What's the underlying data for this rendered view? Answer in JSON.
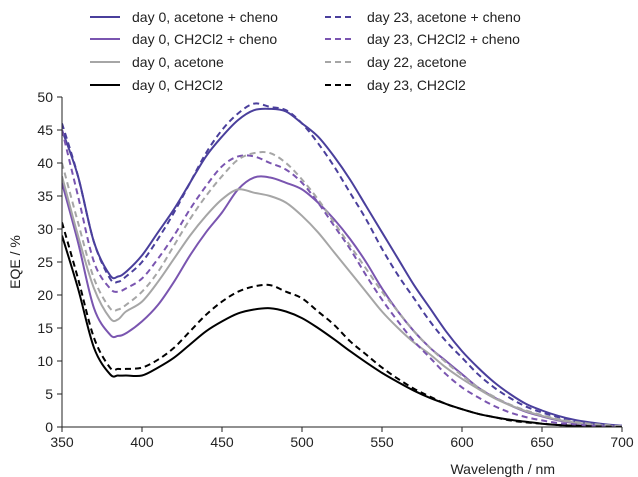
{
  "chart_data": {
    "type": "line",
    "title": "",
    "xlabel": "Wavelength / nm",
    "ylabel": "EQE / %",
    "xlim": [
      350,
      700
    ],
    "ylim": [
      0,
      50
    ],
    "xticks": [
      "350",
      "400",
      "450",
      "500",
      "550",
      "600",
      "650",
      "700"
    ],
    "yticks": [
      "0",
      "5",
      "10",
      "15",
      "20",
      "25",
      "30",
      "35",
      "40",
      "45",
      "50"
    ],
    "grid": false,
    "legend_position": "top",
    "colors": {
      "dark_purple": "#4a3f9c",
      "mid_purple": "#7a55b0",
      "gray": "#a6a6a6",
      "black": "#000000"
    },
    "series": [
      {
        "name": "day 0, acetone + cheno",
        "color": "#4a3f9c",
        "dash": "solid",
        "x": [
          350,
          360,
          370,
          380,
          385,
          390,
          400,
          410,
          420,
          430,
          440,
          450,
          460,
          470,
          480,
          490,
          500,
          510,
          520,
          530,
          540,
          550,
          560,
          570,
          580,
          590,
          600,
          610,
          620,
          630,
          640,
          650,
          660,
          670,
          680,
          690,
          700
        ],
        "y": [
          45,
          38,
          28,
          23,
          22.8,
          23.5,
          26,
          29.5,
          33,
          37,
          41,
          44,
          46.5,
          48,
          48.2,
          47.8,
          46,
          44,
          41,
          37.5,
          33.5,
          29.5,
          25.5,
          21.5,
          18,
          14.5,
          11.5,
          9,
          6.8,
          5,
          3.5,
          2.5,
          1.7,
          1.1,
          0.7,
          0.4,
          0.2
        ]
      },
      {
        "name": "day 0, CH2Cl2 + cheno",
        "color": "#7a55b0",
        "dash": "solid",
        "x": [
          350,
          360,
          370,
          380,
          385,
          390,
          400,
          410,
          420,
          430,
          440,
          450,
          460,
          470,
          480,
          490,
          500,
          510,
          520,
          530,
          540,
          550,
          560,
          570,
          580,
          590,
          600,
          610,
          620,
          630,
          640,
          650,
          660,
          670,
          680,
          690,
          700
        ],
        "y": [
          37,
          28,
          18,
          14,
          13.8,
          14.2,
          16,
          18.5,
          22,
          26,
          29.5,
          32.5,
          36,
          37.8,
          37.8,
          37,
          36,
          34,
          31.5,
          28.5,
          25,
          21,
          17.5,
          14.5,
          12,
          10,
          8,
          6,
          4.5,
          3.3,
          2.3,
          1.6,
          1,
          0.6,
          0.4,
          0.2,
          0.1
        ]
      },
      {
        "name": "day 0, acetone",
        "color": "#a6a6a6",
        "dash": "solid",
        "x": [
          350,
          360,
          370,
          380,
          385,
          390,
          400,
          410,
          420,
          430,
          440,
          450,
          460,
          470,
          480,
          490,
          500,
          510,
          520,
          530,
          540,
          550,
          560,
          570,
          580,
          590,
          600,
          610,
          620,
          630,
          640,
          650,
          660,
          670,
          680,
          690,
          700
        ],
        "y": [
          38,
          29,
          21,
          16.5,
          16.3,
          17.5,
          19,
          22,
          25.5,
          29,
          32,
          34.5,
          36,
          35.5,
          35,
          34,
          32,
          29.5,
          26.5,
          23.5,
          20.5,
          17.5,
          15,
          12.8,
          11,
          9,
          7.3,
          5.8,
          4.4,
          3.3,
          2.4,
          1.7,
          1.1,
          0.7,
          0.4,
          0.2,
          0.1
        ]
      },
      {
        "name": "day 0, CH2Cl2",
        "color": "#000000",
        "dash": "solid",
        "x": [
          350,
          360,
          370,
          380,
          385,
          390,
          400,
          410,
          420,
          430,
          440,
          450,
          460,
          470,
          480,
          490,
          500,
          510,
          520,
          530,
          540,
          550,
          560,
          570,
          580,
          590,
          600,
          610,
          620,
          630,
          640,
          650,
          660,
          670,
          680,
          690,
          700
        ],
        "y": [
          29,
          21,
          12,
          8,
          7.8,
          7.8,
          7.8,
          9,
          10.5,
          12.5,
          14.5,
          16,
          17.2,
          17.8,
          18,
          17.5,
          16.5,
          15,
          13.3,
          11.5,
          9.8,
          8.2,
          6.8,
          5.5,
          4.4,
          3.5,
          2.7,
          2,
          1.5,
          1.1,
          0.8,
          0.5,
          0.3,
          0.2,
          0.1,
          0.05,
          0
        ]
      },
      {
        "name": "day 23, acetone + cheno",
        "color": "#4a3f9c",
        "dash": "dashed",
        "x": [
          350,
          360,
          370,
          380,
          385,
          390,
          400,
          410,
          420,
          430,
          440,
          450,
          460,
          470,
          480,
          490,
          500,
          510,
          520,
          530,
          540,
          550,
          560,
          570,
          580,
          590,
          600,
          610,
          620,
          630,
          640,
          650,
          660,
          670,
          680,
          690,
          700
        ],
        "y": [
          46,
          38,
          28,
          22.5,
          22,
          22.8,
          25,
          28.5,
          32.5,
          37,
          41.5,
          45,
          47.5,
          49,
          48.5,
          48,
          46,
          43,
          39.5,
          35.5,
          31.5,
          27,
          23,
          19.5,
          16,
          13,
          10.5,
          8,
          6,
          4.4,
          3.1,
          2.2,
          1.5,
          0.9,
          0.5,
          0.3,
          0.1
        ]
      },
      {
        "name": "day 23, CH2Cl2 + cheno",
        "color": "#7a55b0",
        "dash": "dashed",
        "x": [
          350,
          360,
          370,
          380,
          385,
          390,
          400,
          410,
          420,
          430,
          440,
          450,
          460,
          470,
          480,
          490,
          500,
          510,
          520,
          530,
          540,
          550,
          560,
          570,
          580,
          590,
          600,
          610,
          620,
          630,
          640,
          650,
          660,
          670,
          680,
          690,
          700
        ],
        "y": [
          45,
          35,
          25,
          21,
          20.5,
          21,
          22.5,
          25.5,
          29,
          33,
          36.5,
          39.5,
          41,
          41,
          40,
          39,
          37,
          34,
          30.5,
          27,
          23,
          19.3,
          16,
          13,
          10.5,
          8,
          6,
          4.5,
          3.2,
          2.2,
          1.5,
          1,
          0.6,
          0.4,
          0.2,
          0.1,
          0
        ]
      },
      {
        "name": "day 22, acetone",
        "color": "#a6a6a6",
        "dash": "dashed",
        "x": [
          350,
          360,
          370,
          380,
          385,
          390,
          400,
          410,
          420,
          430,
          440,
          450,
          460,
          470,
          480,
          490,
          500,
          510,
          520,
          530,
          540,
          550,
          560,
          570,
          580,
          590,
          600,
          610,
          620,
          630,
          640,
          650,
          660,
          670,
          680,
          690,
          700
        ],
        "y": [
          40,
          31,
          22.5,
          18,
          17.8,
          18.5,
          20.5,
          23.5,
          27.5,
          31.5,
          35,
          38,
          40.5,
          41.5,
          41.5,
          40,
          37.5,
          34.5,
          31,
          27.5,
          24,
          20.5,
          17.5,
          14.5,
          12,
          9.8,
          7.8,
          6,
          4.6,
          3.4,
          2.5,
          1.8,
          1.2,
          0.8,
          0.5,
          0.3,
          0.1
        ]
      },
      {
        "name": "day 23, CH2Cl2",
        "color": "#000000",
        "dash": "dashed",
        "x": [
          350,
          360,
          370,
          380,
          385,
          390,
          400,
          410,
          420,
          430,
          440,
          450,
          460,
          470,
          480,
          490,
          500,
          510,
          520,
          530,
          540,
          550,
          560,
          570,
          580,
          590,
          600,
          610,
          620,
          630,
          640,
          650,
          660,
          670,
          680,
          690,
          700
        ],
        "y": [
          31,
          22.5,
          13.5,
          9,
          8.8,
          8.8,
          9,
          10.2,
          12,
          14.5,
          17,
          19,
          20.5,
          21.3,
          21.5,
          20.5,
          19.5,
          17.5,
          15.5,
          13,
          11,
          9,
          7.3,
          5.8,
          4.6,
          3.5,
          2.7,
          2,
          1.5,
          1,
          0.7,
          0.5,
          0.3,
          0.2,
          0.1,
          0.05,
          0
        ]
      }
    ]
  }
}
